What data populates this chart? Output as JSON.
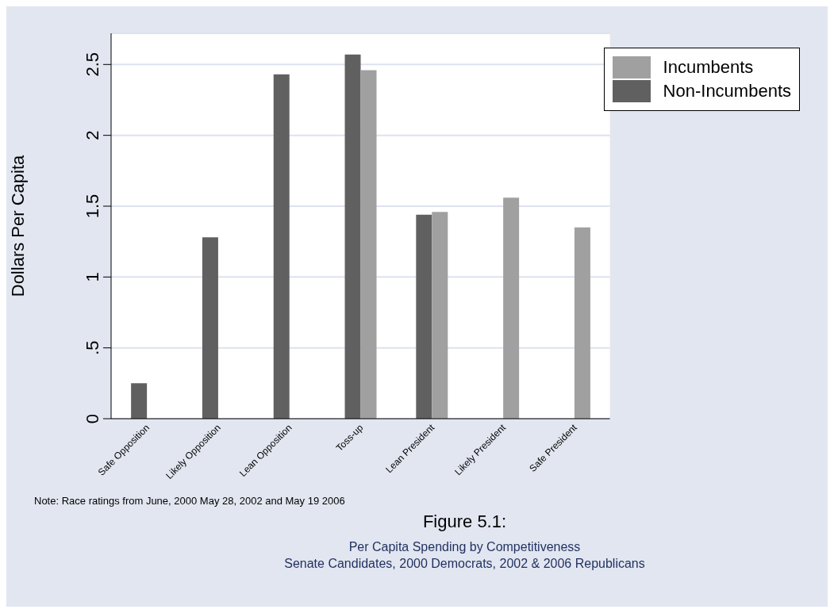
{
  "chart_data": {
    "type": "bar",
    "title": "Figure 5.1:",
    "subtitle": "Per Capita Spending by Competitiveness\nSenate Candidates, 2000 Democrats, 2002 & 2006 Republicans",
    "ylabel": "Dollars Per Capita",
    "annotations": [
      "Note: Race ratings from June, 2000 May 28, 2002 and May 19 2006"
    ],
    "categories": [
      "Safe Opposition",
      "Likely Opposition",
      "Lean Opposition",
      "Toss-up",
      "Lean President",
      "Likely President",
      "Safe President"
    ],
    "series": [
      {
        "name": "Non-Incumbents",
        "color": "#606060",
        "values": [
          0.25,
          1.28,
          2.43,
          2.57,
          1.44,
          null,
          null
        ]
      },
      {
        "name": "Incumbents",
        "color": "#a0a0a0",
        "values": [
          null,
          null,
          null,
          2.46,
          1.46,
          1.56,
          1.35
        ]
      }
    ],
    "ylim": [
      0,
      2.72
    ],
    "yticks": [
      0,
      {
        "value": 0.5,
        "label": ".5"
      },
      1,
      1.5,
      2,
      2.5
    ],
    "grid": "y",
    "legend": "top right"
  }
}
